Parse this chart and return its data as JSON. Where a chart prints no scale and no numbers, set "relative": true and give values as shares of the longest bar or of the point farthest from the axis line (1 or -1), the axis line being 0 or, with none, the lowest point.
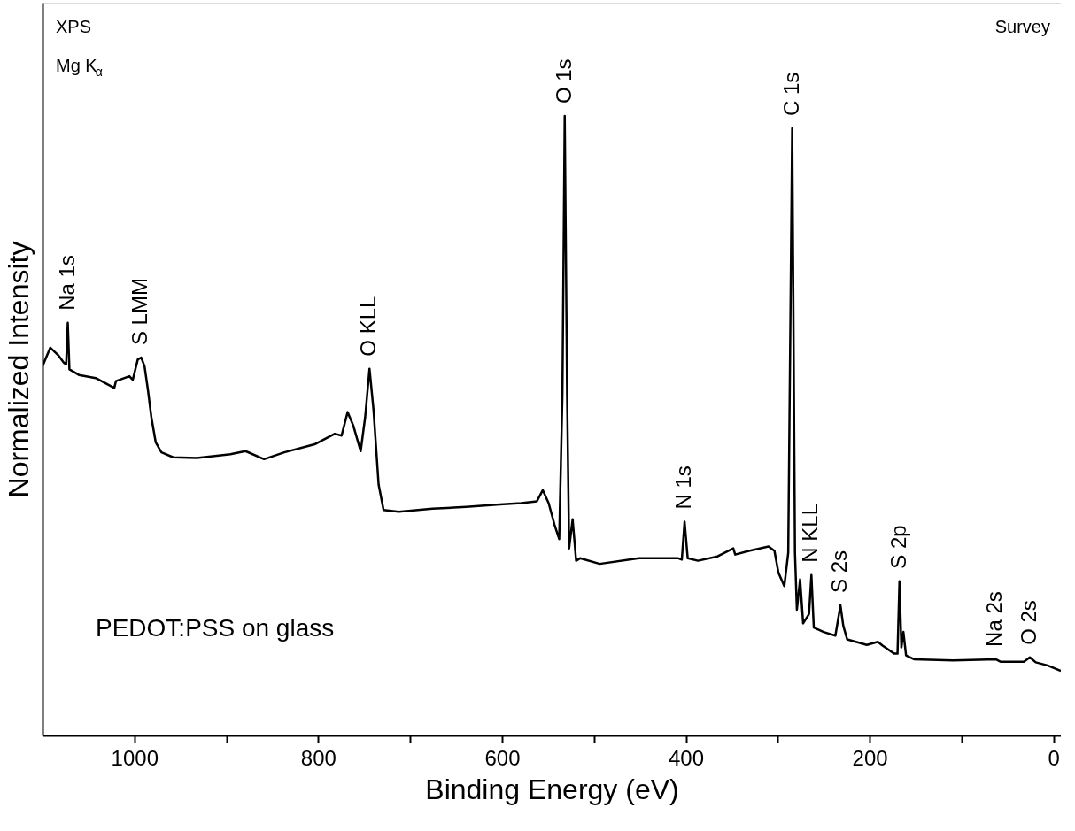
{
  "chart_data": {
    "type": "line",
    "xlabel": "Binding Energy (eV)",
    "ylabel": "Normalized Intensity",
    "relative": true,
    "xlim": [
      1100,
      -8
    ],
    "xticks": [
      1000,
      {
        "value": 900,
        "label": null
      },
      800,
      {
        "value": 700,
        "label": null
      },
      600,
      {
        "value": 500,
        "label": null
      },
      400,
      {
        "value": 300,
        "label": null
      },
      200,
      {
        "value": 100,
        "label": null
      },
      0
    ],
    "grid": false,
    "marker": "none",
    "line_style": "solid",
    "series": [
      {
        "color": "#000000",
        "x": [
          1100.0,
          1091.5,
          1082.4,
          1076.9,
          1074.3,
          1072.5,
          1070.7,
          1060.4,
          1042.1,
          1021.9,
          1020.1,
          1005.5,
          1001.8,
          996.3,
          992.6,
          989.0,
          985.3,
          981.6,
          976.8,
          970.6,
          957.8,
          932.1,
          895.5,
          879.1,
          858.9,
          836.9,
          803.9,
          781.9,
          774.6,
          768.0,
          761.8,
          753.8,
          748.9,
          744.2,
          739.8,
          734.3,
          728.9,
          712.3,
          675.7,
          639.1,
          602.4,
          579.2,
          562.1,
          555.7,
          549.3,
          542.9,
          537.8,
          534.3,
          531.8,
          529.2,
          527.0,
          523.2,
          519.4,
          515.1,
          493.7,
          451.0,
          408.2,
          404.4,
          401.4,
          398.0,
          386.9,
          365.5,
          348.4,
          346.3,
          331.4,
          310.0,
          303.6,
          299.3,
          292.9,
          288.6,
          284.3,
          281.3,
          279.2,
          275.7,
          272.4,
          266.0,
          263.4,
          260.8,
          250.1,
          237.3,
          231.8,
          228.7,
          224.5,
          203.1,
          191.1,
          186.0,
          173.2,
          169.7,
          167.6,
          165.5,
          163.3,
          160.4,
          151.8,
          109.0,
          62.9,
          57.8,
          32.2,
          25.7,
          19.3,
          6.5,
          -8.0
        ],
        "values": [
          0.596,
          0.626,
          0.613,
          0.602,
          0.599,
          0.666,
          0.591,
          0.582,
          0.577,
          0.561,
          0.572,
          0.58,
          0.574,
          0.607,
          0.61,
          0.596,
          0.558,
          0.514,
          0.473,
          0.457,
          0.449,
          0.448,
          0.454,
          0.459,
          0.446,
          0.457,
          0.47,
          0.487,
          0.484,
          0.522,
          0.5,
          0.459,
          0.514,
          0.592,
          0.525,
          0.405,
          0.364,
          0.361,
          0.366,
          0.369,
          0.373,
          0.375,
          0.378,
          0.396,
          0.375,
          0.34,
          0.317,
          0.551,
          1.0,
          0.551,
          0.302,
          0.349,
          0.282,
          0.286,
          0.277,
          0.286,
          0.286,
          0.284,
          0.345,
          0.286,
          0.282,
          0.289,
          0.302,
          0.292,
          0.298,
          0.305,
          0.298,
          0.263,
          0.241,
          0.295,
          0.98,
          0.295,
          0.203,
          0.252,
          0.181,
          0.196,
          0.259,
          0.174,
          0.167,
          0.161,
          0.21,
          0.177,
          0.155,
          0.146,
          0.151,
          0.145,
          0.132,
          0.132,
          0.249,
          0.142,
          0.167,
          0.129,
          0.123,
          0.121,
          0.123,
          0.119,
          0.119,
          0.126,
          0.118,
          0.113,
          0.104
        ]
      }
    ],
    "annotations": [
      "XPS",
      "Mg K$_{α}$",
      "Survey",
      "PEDOT:PSS on glass",
      {
        "text": "Na 1s",
        "x": 1072.5,
        "y": 0.666
      },
      {
        "text": "S LMM",
        "x": 992.6,
        "y": 0.61
      },
      {
        "text": "O KLL",
        "x": 744.2,
        "y": 0.592
      },
      {
        "text": "O 1s",
        "x": 531.8,
        "y": 1.0
      },
      {
        "text": "N 1s",
        "x": 401.4,
        "y": 0.345
      },
      {
        "text": "C 1s",
        "x": 284.3,
        "y": 0.98
      },
      {
        "text": "N KLL",
        "x": 263.4,
        "y": 0.259
      },
      {
        "text": "S 2s",
        "x": 231.8,
        "y": 0.21
      },
      {
        "text": "S 2p",
        "x": 167.6,
        "y": 0.249
      },
      {
        "text": "Na 2s",
        "x": 62.9,
        "y": 0.123
      },
      {
        "text": "O 2s",
        "x": 25.7,
        "y": 0.126
      }
    ]
  }
}
